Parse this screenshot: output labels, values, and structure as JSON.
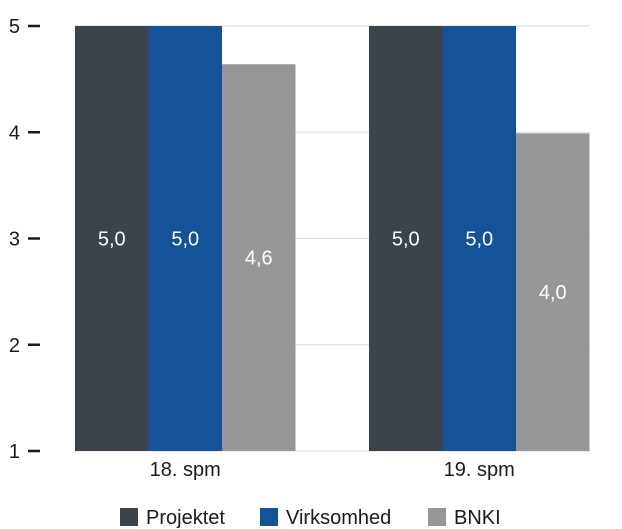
{
  "chart_data": {
    "type": "bar",
    "categories": [
      "18. spm",
      "19. spm"
    ],
    "series": [
      {
        "name": "Projektet",
        "values": [
          5.0,
          5.0
        ],
        "labels": [
          "5,0",
          "5,0"
        ],
        "color": "#3d434b"
      },
      {
        "name": "Virksomhed",
        "values": [
          5.0,
          5.0
        ],
        "labels": [
          "5,0",
          "5,0"
        ],
        "color": "#14539a"
      },
      {
        "name": "BNKI",
        "values": [
          4.64,
          3.99
        ],
        "labels": [
          "4,6",
          "4,0"
        ],
        "color": "#979797"
      }
    ],
    "ylim": [
      1,
      5
    ],
    "yticks": [
      {
        "value": 5,
        "label": "5"
      },
      {
        "value": 4,
        "label": "4"
      },
      {
        "value": 3,
        "label": "3"
      },
      {
        "value": 2,
        "label": "2"
      },
      {
        "value": 1,
        "label": "1"
      }
    ],
    "grid": true,
    "legend_position": "bottom"
  }
}
